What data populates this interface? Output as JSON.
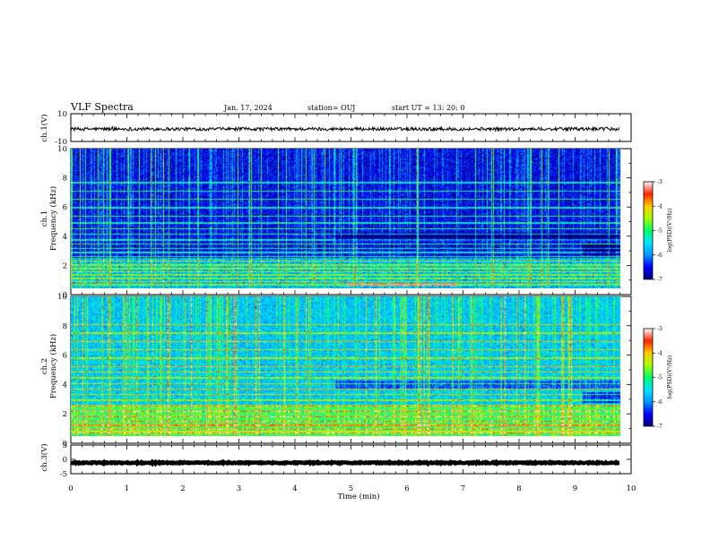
{
  "header": {
    "title": "VLF Spectra",
    "date": "Jan. 17, 2024",
    "station": "station= OUJ",
    "start": "start  UT  =   13: 20: 0"
  },
  "colors": {
    "colormap": [
      "#00007a",
      "#0000ff",
      "#0099ff",
      "#00e5ff",
      "#00ff66",
      "#a6ff00",
      "#ffcc00",
      "#ff2200",
      "#ffffff"
    ],
    "trace": "#000000",
    "axes": "#000000"
  },
  "chart_data": [
    {
      "type": "line",
      "panel": "ch1-waveform",
      "ylabel": "ch.1(V)",
      "ylim": [
        -10,
        10
      ],
      "yticks": [
        "10",
        "-10"
      ],
      "series": [
        {
          "level": -1,
          "noise_amplitude": 1.2
        }
      ]
    },
    {
      "type": "heatmap",
      "panel": "ch1-spectrogram",
      "ylabel": "ch.1\nFrequency (kHz)",
      "ylim": [
        0,
        10
      ],
      "yticks": [
        "0",
        "2",
        "4",
        "6",
        "8",
        "10"
      ],
      "xlim": [
        0,
        10
      ],
      "data_xrange": [
        0,
        9.8
      ],
      "colorbar": {
        "label": "log(PSD)(V²/Hz)",
        "range": [
          -7,
          -3
        ],
        "ticks": [
          "-3",
          "-4",
          "-5",
          "-6",
          "-7"
        ]
      },
      "description_features": {
        "background_level": -6.6,
        "hum_lines_khz": [
          0.3,
          0.5,
          0.75,
          1.0,
          1.2,
          1.45,
          1.7,
          2.0,
          2.3,
          2.6,
          2.9,
          3.2,
          3.5,
          3.9,
          4.3,
          4.7,
          5.2,
          5.8,
          6.4,
          7.0,
          7.6
        ],
        "sferic_density": "high",
        "red_band_khz": 0.3,
        "red_band_time_min": [
          5.0,
          7.0
        ]
      }
    },
    {
      "type": "heatmap",
      "panel": "ch2-spectrogram",
      "ylabel": "ch.2\nFrequency (kHz)",
      "ylim": [
        0,
        10
      ],
      "yticks": [
        "0",
        "2",
        "4",
        "6",
        "8",
        "10"
      ],
      "xlim": [
        0,
        10
      ],
      "data_xrange": [
        0,
        9.8
      ],
      "colorbar": {
        "label": "log(PSD)(V²/Hz)",
        "range": [
          -7,
          -3
        ],
        "ticks": [
          "-3",
          "-4",
          "-5",
          "-6",
          "-7"
        ]
      },
      "description_features": {
        "background_level": -5.7,
        "hum_lines_khz": [
          0.25,
          0.5,
          0.8,
          1.1,
          1.4,
          1.8,
          2.2,
          2.6,
          3.0,
          3.4,
          3.8,
          4.2,
          4.6,
          5.0,
          5.6,
          6.2,
          6.8,
          7.4,
          8.0
        ],
        "sferic_density": "high",
        "green_band_khz": 0.3
      }
    },
    {
      "type": "line",
      "panel": "ch3-waveform",
      "ylabel": "ch.3(V)",
      "ylim": [
        -5,
        5
      ],
      "yticks": [
        "5",
        "0",
        "-5"
      ],
      "series": [
        {
          "level": -1.2,
          "noise_amplitude": 0.2
        }
      ]
    }
  ],
  "xaxis": {
    "label": "Time (min)",
    "ticks": [
      "0",
      "1",
      "2",
      "3",
      "4",
      "5",
      "6",
      "7",
      "8",
      "9",
      "10"
    ],
    "range": [
      0,
      10
    ]
  }
}
